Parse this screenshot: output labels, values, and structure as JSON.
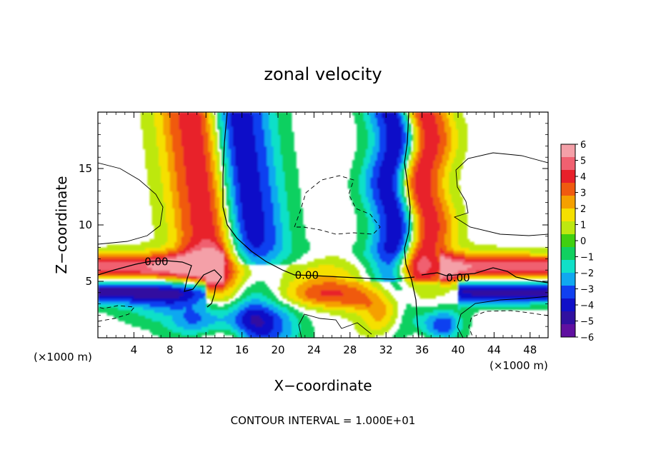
{
  "chart_data": {
    "type": "heatmap",
    "title": "zonal velocity",
    "xlabel": "X−coordinate",
    "ylabel": "Z−coordinate",
    "x_unit_left": "(×1000 m)",
    "x_unit_right": "(×1000 m)",
    "footnote": "CONTOUR INTERVAL = 1.000E+01",
    "xlim": [
      0,
      50
    ],
    "ylim": [
      0,
      20
    ],
    "x_ticks": [
      4,
      8,
      12,
      16,
      20,
      24,
      28,
      32,
      36,
      40,
      44,
      48
    ],
    "x_tick_labels": [
      "4",
      "8",
      "12",
      "16",
      "20",
      "24",
      "28",
      "32",
      "36",
      "40",
      "44",
      "48"
    ],
    "y_ticks": [
      5,
      10,
      15
    ],
    "y_tick_labels": [
      "5",
      "10",
      "15"
    ],
    "colorbar": {
      "range": [
        -6,
        6
      ],
      "labels": [
        "6",
        "5",
        "4",
        "3",
        "2",
        "1",
        "0",
        "−1",
        "−2",
        "−3",
        "−4",
        "−5",
        "−6"
      ],
      "colors": [
        "#f4a0a8",
        "#f06070",
        "#e8202a",
        "#f05a10",
        "#f5a000",
        "#f5e000",
        "#bde810",
        "#40d010",
        "#10d060",
        "#10e0c8",
        "#10a8f0",
        "#1040f0",
        "#1010c8",
        "#3010a0",
        "#6010a0"
      ]
    },
    "contour_labels": [
      {
        "text": "0.00",
        "x": 6.5,
        "y": 6.7
      },
      {
        "text": "0.00",
        "x": 23.2,
        "y": 5.5
      },
      {
        "text": "0.00",
        "x": 40.0,
        "y": 5.3
      }
    ],
    "grid": false,
    "legend": "colorbar-right"
  }
}
